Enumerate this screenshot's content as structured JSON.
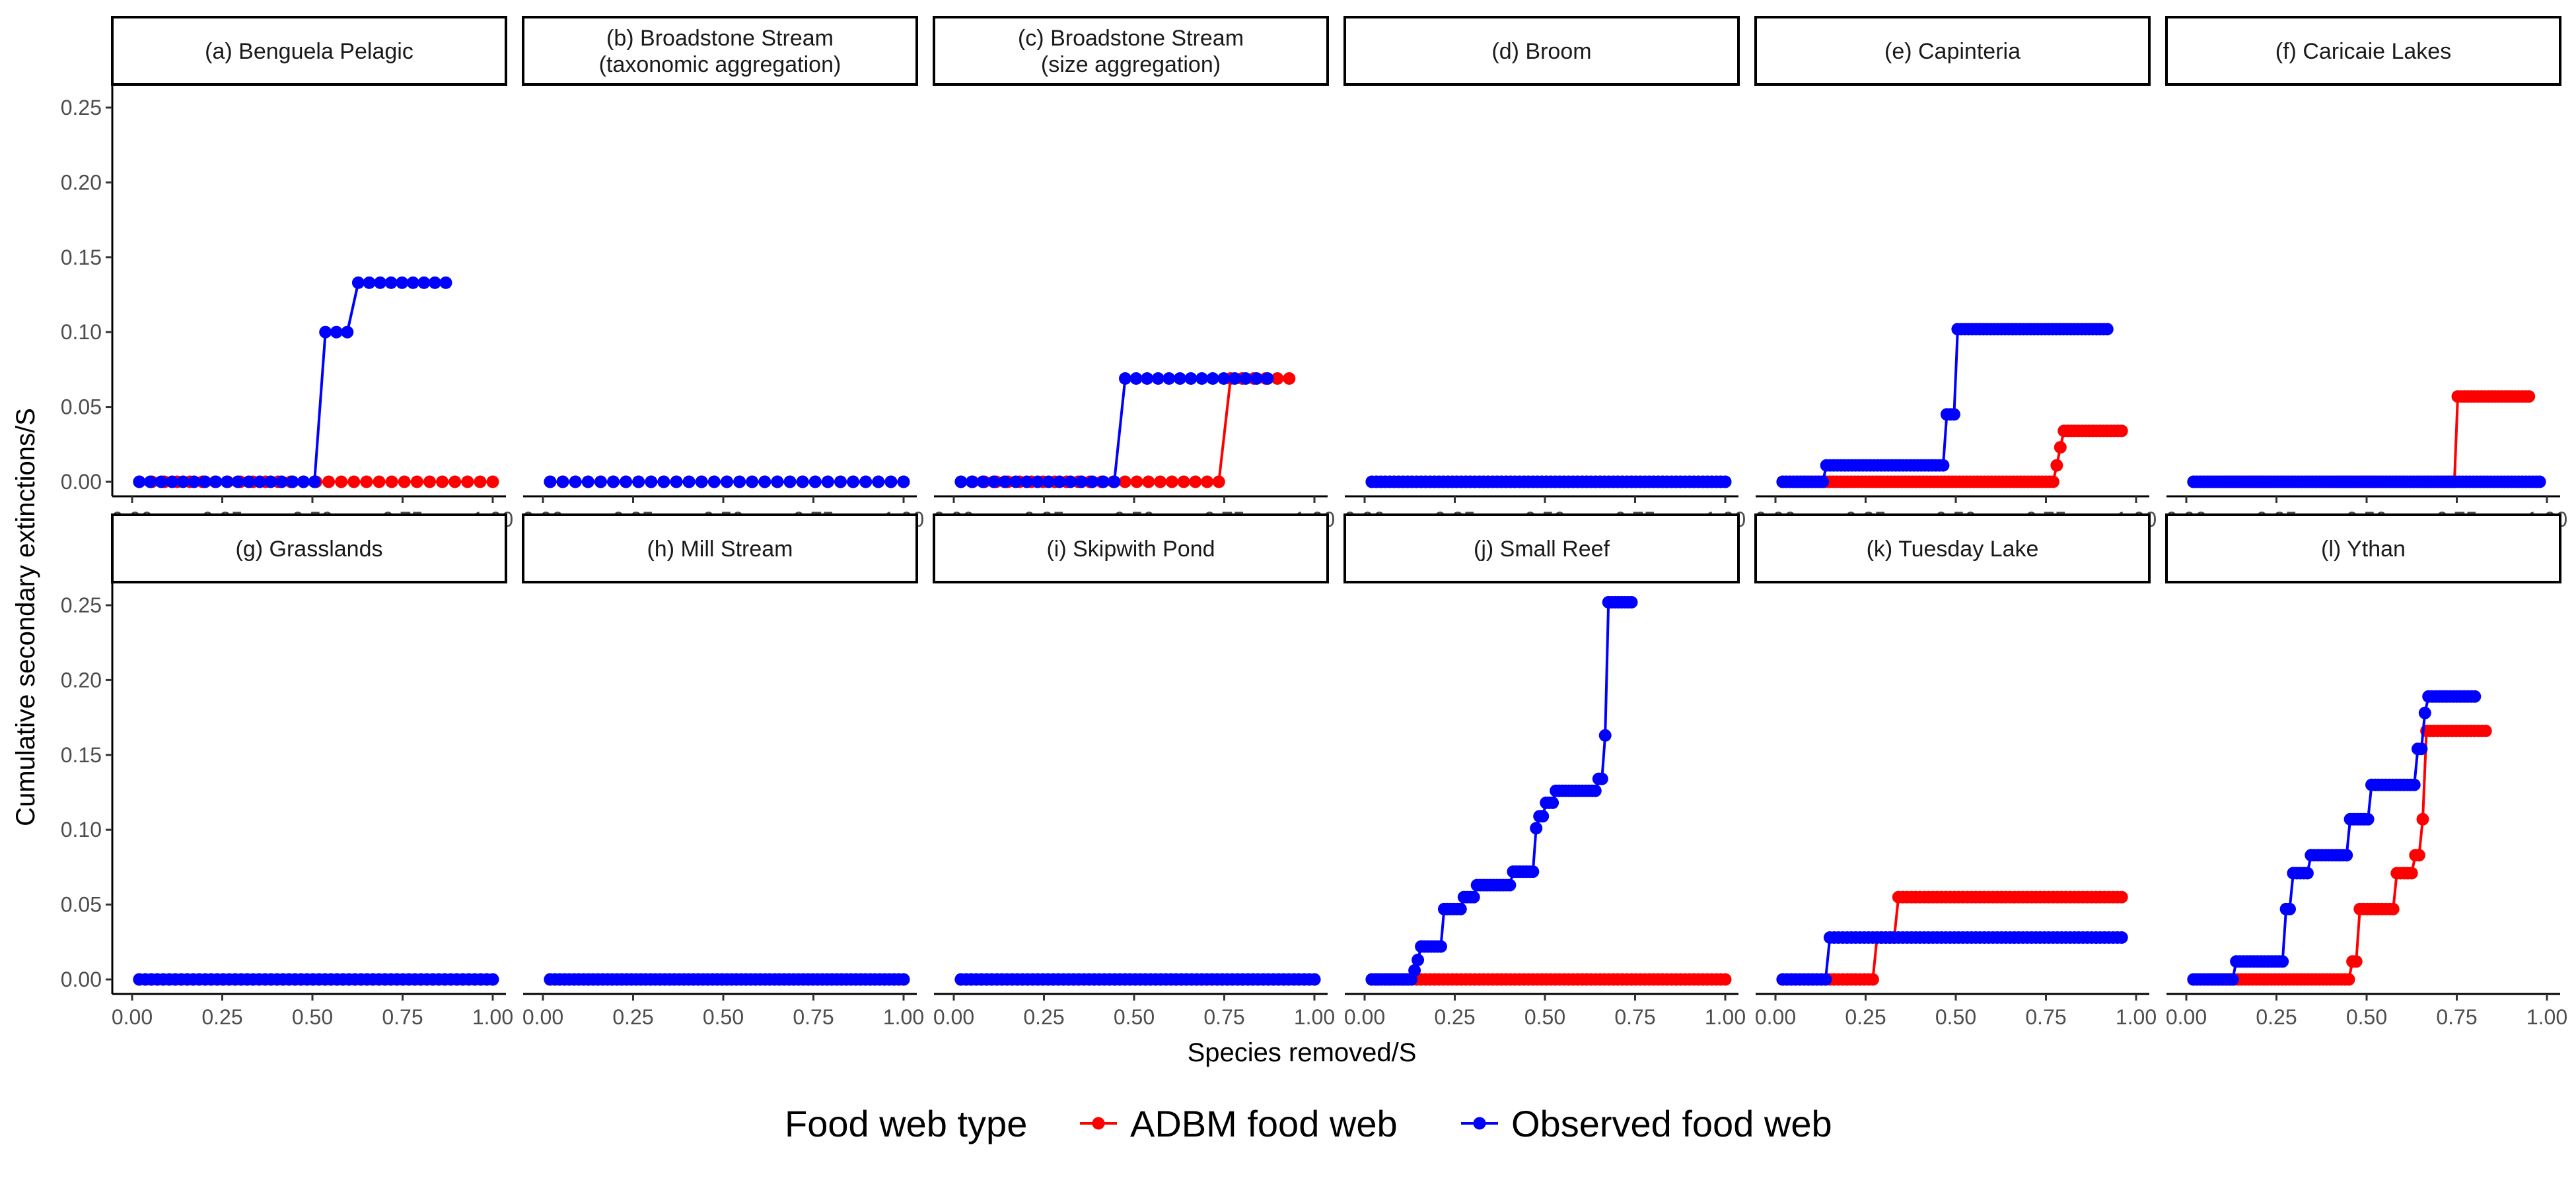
{
  "chart_data": {
    "type": "line",
    "xlabel": "Species removed/S",
    "ylabel": "Cumulative secondary extinctions/S",
    "xlim": [
      0,
      1
    ],
    "ylim": [
      0,
      0.25
    ],
    "x_ticks": [
      "0.00",
      "0.25",
      "0.50",
      "0.75",
      "1.00"
    ],
    "y_ticks": [
      "0.00",
      "0.05",
      "0.10",
      "0.15",
      "0.20",
      "0.25"
    ],
    "grid": false,
    "legend": {
      "title": "Food web type",
      "position": "bottom",
      "entries": [
        {
          "name": "ADBM food web",
          "color": "#FF0000"
        },
        {
          "name": "Observed food web",
          "color": "#0000FF"
        }
      ]
    },
    "panels": [
      {
        "label": "(a) Benguela Pelagic",
        "observed": {
          "n": 29,
          "xend": 0.87,
          "steps": [
            [
              0.52,
              0.1
            ],
            [
              0.62,
              0.133
            ]
          ]
        },
        "adbm": {
          "n": 29,
          "xend": 1.0,
          "steps": []
        }
      },
      {
        "label": "(b) Broadstone Stream\n(taxonomic aggregation)",
        "observed": {
          "n": 29,
          "xend": 1.0,
          "steps": []
        },
        "adbm": {
          "n": 29,
          "xend": 1.0,
          "steps": []
        }
      },
      {
        "label": "(c) Broadstone Stream\n(size aggregation)",
        "observed": {
          "n": 29,
          "xend": 0.87,
          "steps": [
            [
              0.47,
              0.069
            ]
          ]
        },
        "adbm": {
          "n": 29,
          "xend": 0.93,
          "steps": [
            [
              0.76,
              0.069
            ]
          ]
        }
      },
      {
        "label": "(d) Broom",
        "observed": {
          "n": 80,
          "xend": 1.0,
          "steps": []
        },
        "adbm": {
          "n": 80,
          "xend": 1.0,
          "steps": []
        }
      },
      {
        "label": "(e) Capinteria",
        "observed": {
          "n": 90,
          "xend": 0.92,
          "steps": [
            [
              0.14,
              0.011
            ],
            [
              0.47,
              0.045
            ],
            [
              0.5,
              0.102
            ]
          ]
        },
        "adbm": {
          "n": 95,
          "xend": 0.96,
          "steps": [
            [
              0.78,
              0.011
            ],
            [
              0.79,
              0.023
            ],
            [
              0.8,
              0.034
            ]
          ]
        }
      },
      {
        "label": "(f) Caricaie Lakes",
        "observed": {
          "n": 100,
          "xend": 0.98,
          "steps": []
        },
        "adbm": {
          "n": 100,
          "xend": 0.95,
          "steps": [
            [
              0.75,
              0.057
            ]
          ]
        }
      },
      {
        "label": "(g) Grasslands",
        "observed": {
          "n": 60,
          "xend": 1.0,
          "steps": []
        },
        "adbm": {
          "n": 60,
          "xend": 1.0,
          "steps": []
        }
      },
      {
        "label": "(h) Mill Stream",
        "observed": {
          "n": 75,
          "xend": 1.0,
          "steps": []
        },
        "adbm": {
          "n": 75,
          "xend": 1.0,
          "steps": []
        }
      },
      {
        "label": "(i) Skipwith Pond",
        "observed": {
          "n": 70,
          "xend": 1.0,
          "steps": []
        },
        "adbm": {
          "n": 70,
          "xend": 1.0,
          "steps": []
        }
      },
      {
        "label": "(j) Small Reef",
        "observed": {
          "n": 80,
          "xend": 0.74,
          "steps": [
            [
              0.13,
              0.006
            ],
            [
              0.14,
              0.013
            ],
            [
              0.15,
              0.022
            ],
            [
              0.22,
              0.047
            ],
            [
              0.27,
              0.055
            ],
            [
              0.31,
              0.063
            ],
            [
              0.41,
              0.072
            ],
            [
              0.47,
              0.101
            ],
            [
              0.48,
              0.109
            ],
            [
              0.5,
              0.118
            ],
            [
              0.53,
              0.126
            ],
            [
              0.64,
              0.134
            ],
            [
              0.66,
              0.163
            ],
            [
              0.67,
              0.252
            ]
          ]
        },
        "adbm": {
          "n": 80,
          "xend": 1.0,
          "steps": []
        }
      },
      {
        "label": "(k) Tuesday Lake",
        "observed": {
          "n": 80,
          "xend": 0.96,
          "steps": [
            [
              0.15,
              0.028
            ]
          ]
        },
        "adbm": {
          "n": 80,
          "xend": 0.96,
          "steps": [
            [
              0.28,
              0.028
            ],
            [
              0.33,
              0.055
            ]
          ]
        }
      },
      {
        "label": "(l) Ythan",
        "observed": {
          "n": 80,
          "xend": 0.8,
          "steps": [
            [
              0.13,
              0.012
            ],
            [
              0.27,
              0.047
            ],
            [
              0.29,
              0.071
            ],
            [
              0.34,
              0.083
            ],
            [
              0.45,
              0.107
            ],
            [
              0.51,
              0.13
            ],
            [
              0.64,
              0.154
            ],
            [
              0.66,
              0.178
            ],
            [
              0.67,
              0.189
            ]
          ]
        },
        "adbm": {
          "n": 80,
          "xend": 0.83,
          "steps": [
            [
              0.46,
              0.012
            ],
            [
              0.48,
              0.047
            ],
            [
              0.58,
              0.071
            ],
            [
              0.63,
              0.083
            ],
            [
              0.65,
              0.107
            ],
            [
              0.66,
              0.166
            ]
          ]
        }
      }
    ]
  }
}
